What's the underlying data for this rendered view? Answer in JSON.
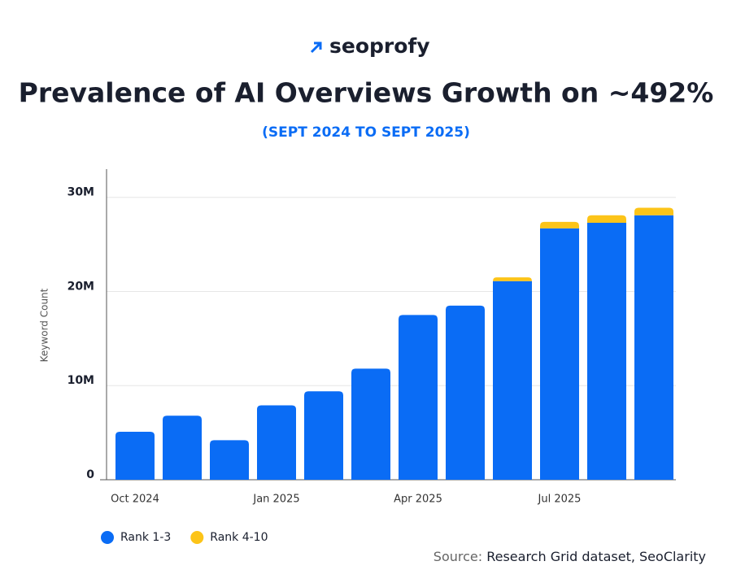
{
  "logo": "seoprofy",
  "source": {
    "label": "Source:",
    "text": "Research Grid dataset, SeoClarity"
  },
  "chart_data": {
    "type": "stacked_bar",
    "title": "Prevalence of AI Overviews Growth on ~492%",
    "subtitle": "(SEPT 2024 TO SEPT 2025)",
    "y_label": "Keyword Count",
    "categories": [
      "Oct 2024",
      null,
      null,
      "Jan 2025",
      null,
      null,
      "Apr 2025",
      null,
      null,
      "Jul 2025",
      null,
      null
    ],
    "series": [
      {
        "name": "Rank 1-3",
        "color": "#0a6cf5",
        "values": [
          5100000,
          6800000,
          4200000,
          7900000,
          9400000,
          11800000,
          17500000,
          18500000,
          21100000,
          26700000,
          27300000,
          28100000
        ]
      },
      {
        "name": "Rank 4-10",
        "color": "#fcc419",
        "values": [
          0,
          0,
          0,
          0,
          0,
          0,
          0,
          0,
          400000,
          700000,
          800000,
          800000
        ]
      }
    ],
    "ylim": [
      0,
      33000000
    ],
    "yticks": [
      0,
      {
        "value": 10000000,
        "label": "10M"
      },
      {
        "value": 20000000,
        "label": "20M"
      },
      {
        "value": 30000000,
        "label": "30M"
      }
    ],
    "grid": true,
    "legend": "bottom-left"
  }
}
